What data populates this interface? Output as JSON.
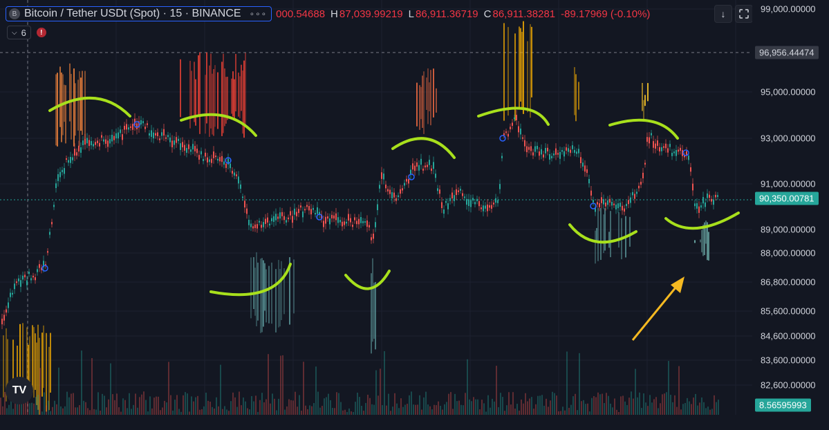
{
  "header": {
    "symbol_badge": "B",
    "title": "Bitcoin / Tether USDt (Spot) · 15 · BINANCE",
    "more_label": "∘∘∘",
    "ohlc": [
      {
        "label": "",
        "value": "000.54688"
      },
      {
        "label": "H",
        "value": "87,039.99219"
      },
      {
        "label": "L",
        "value": "86,911.36719"
      },
      {
        "label": "C",
        "value": "86,911.38281"
      },
      {
        "label": "",
        "value": "-89.17969 (-0.10%)"
      }
    ],
    "indicator_toggle_label": "6",
    "warning_label": "!"
  },
  "toolbar": {
    "down_arrow_icon": "arrow-down",
    "fullscreen_icon": "fullscreen"
  },
  "price_axis": {
    "ticks": [
      "99,000.00000",
      "95,000.00000",
      "93,000.00000",
      "91,000.00000",
      "89,000.00000",
      "88,000.00000",
      "86,800.00000",
      "85,600.00000",
      "84,600.00000",
      "83,600.00000",
      "82,600.00000"
    ],
    "top_label": "96,956.44474",
    "current_price_label": "90,350.00781",
    "volume_label": "8.56595993"
  },
  "logo_text": "TV",
  "colors": {
    "background": "#131722",
    "up": "#26a69a",
    "down": "#ef5350",
    "annotation": "#a8e01c",
    "arrow": "#f5b921",
    "current_price_tag": "#26a69a"
  }
}
